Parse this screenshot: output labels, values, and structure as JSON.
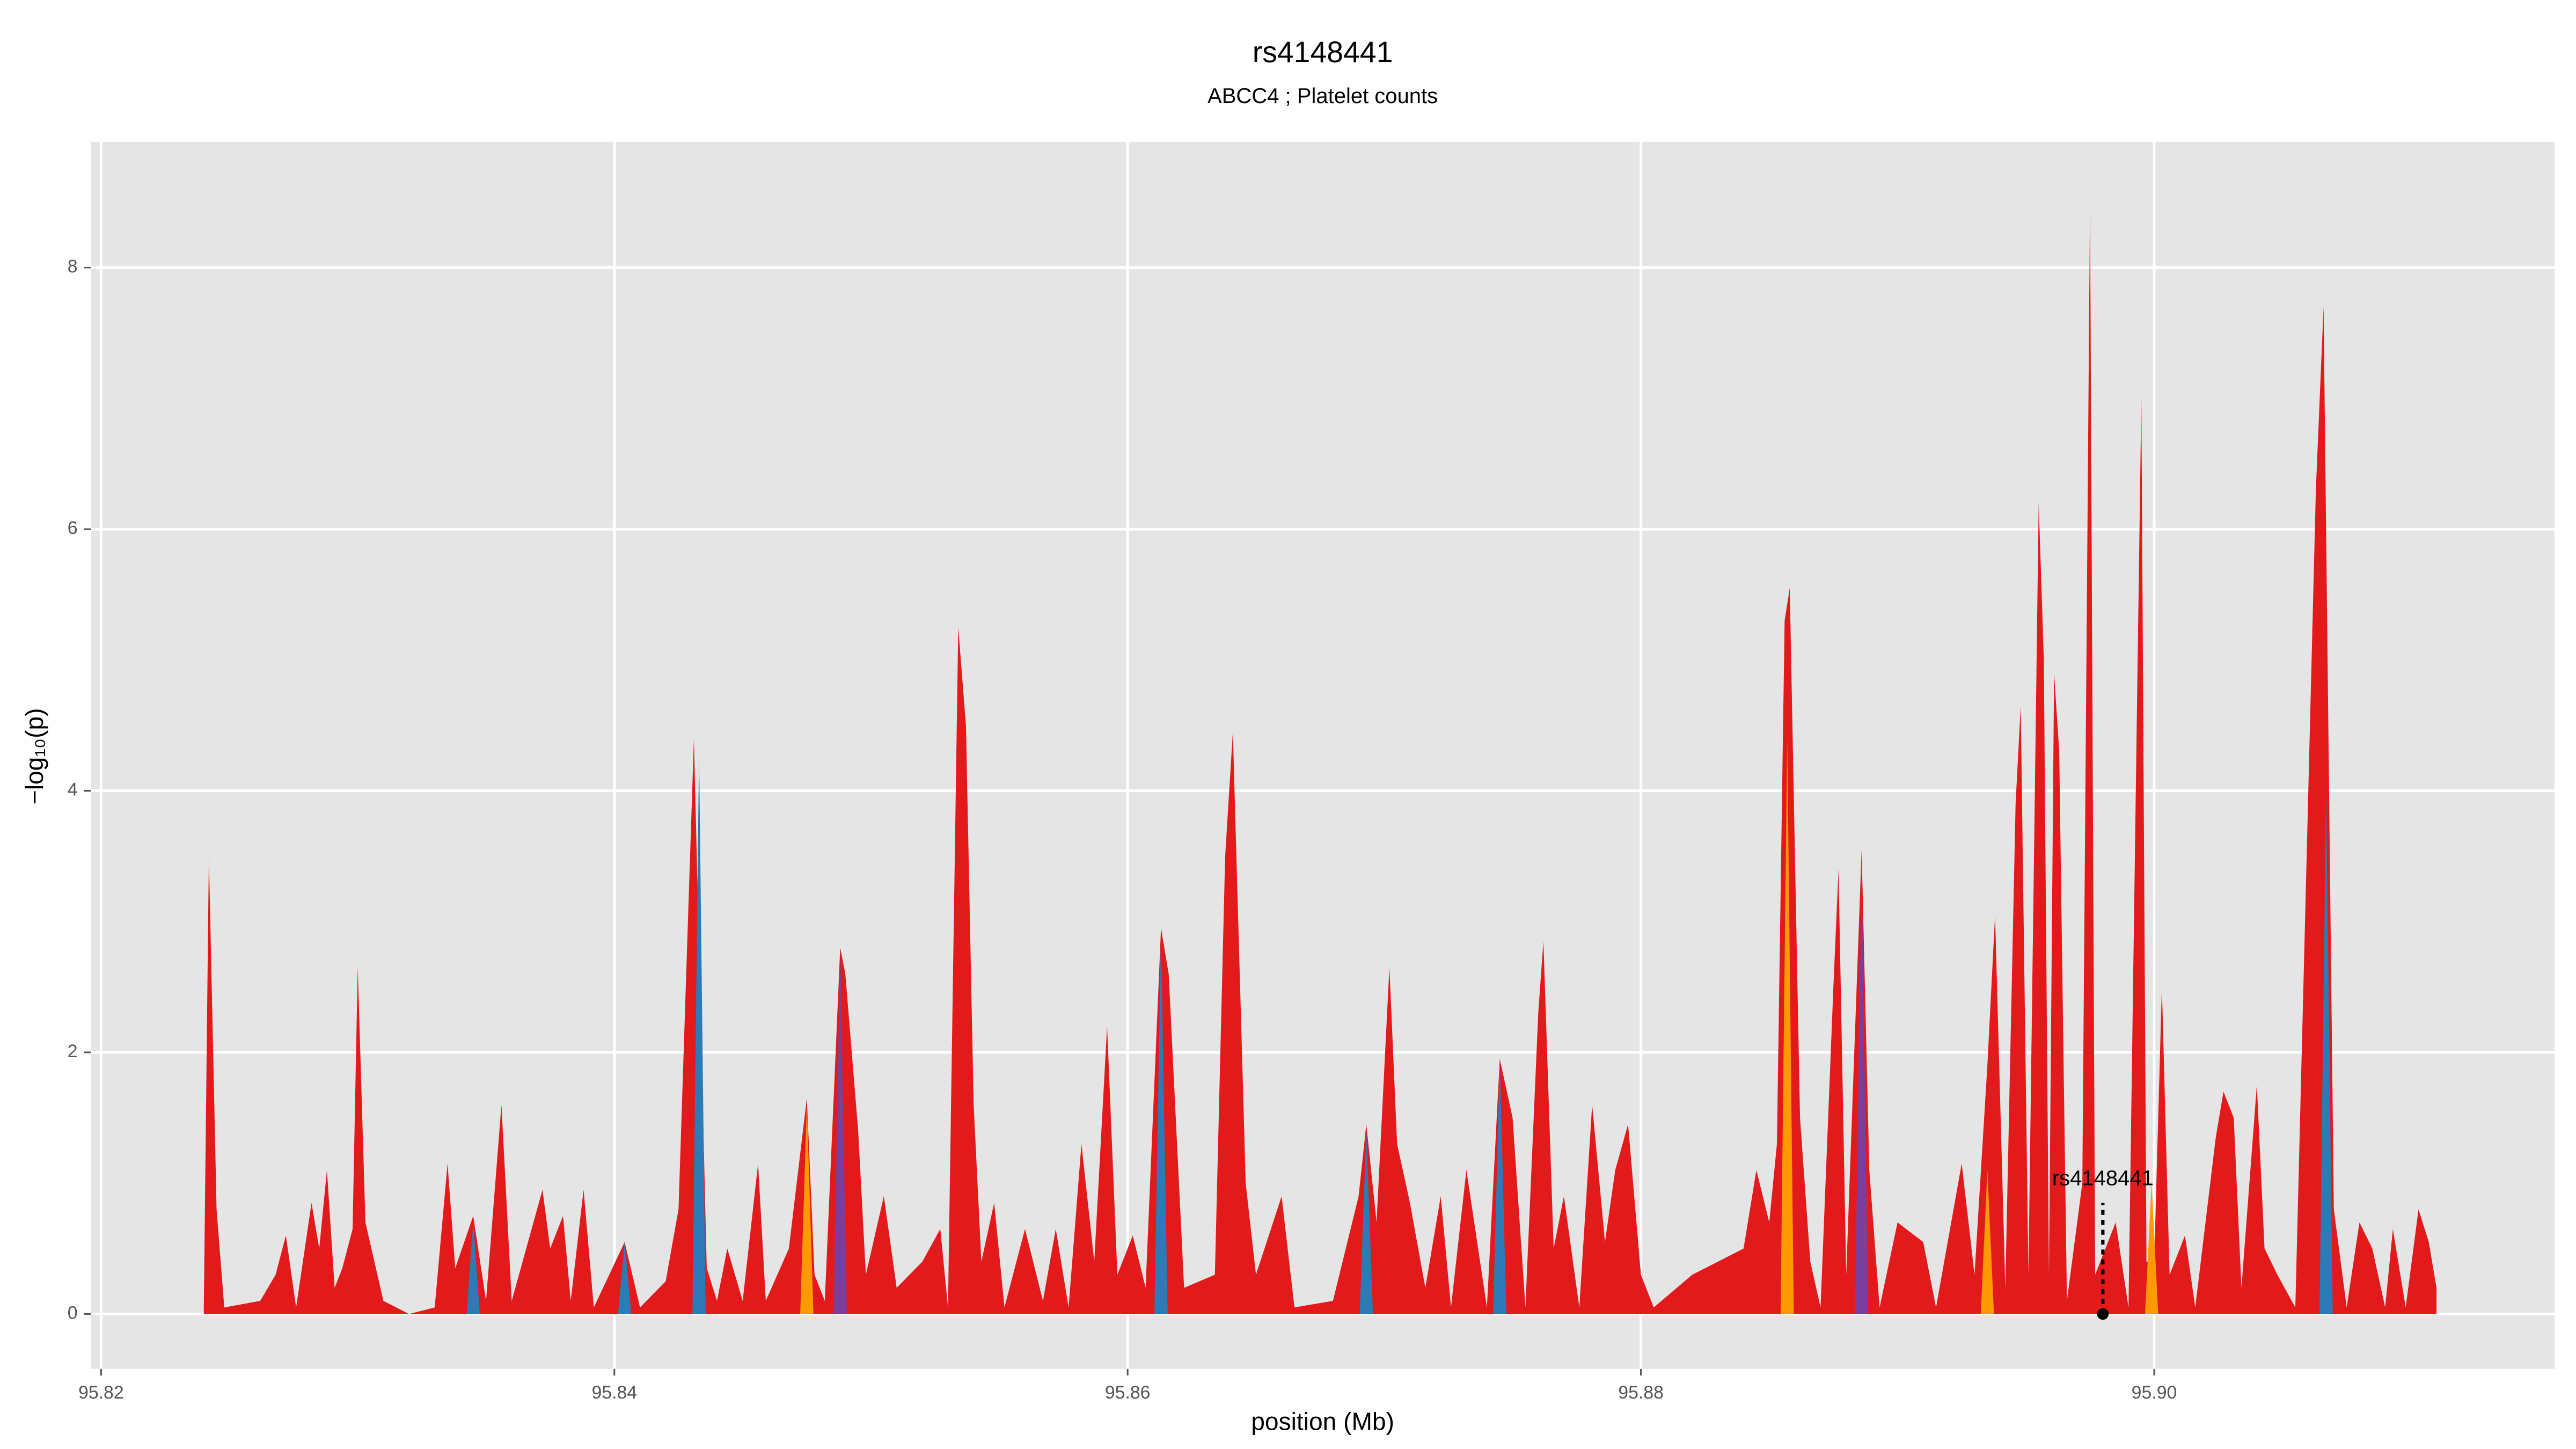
{
  "chart_data": {
    "type": "area",
    "title": "rs4148441",
    "subtitle": "ABCC4 ; Platelet counts",
    "x_label": "position (Mb)",
    "y_label": "−log₁₀(p)",
    "xlim": [
      95.8196,
      95.9156
    ],
    "ylim": [
      -0.42,
      8.96
    ],
    "xticks": [
      95.82,
      95.84,
      95.86,
      95.88,
      {
        "value": 95.9,
        "label": "95.90"
      }
    ],
    "yticks": [
      0,
      2,
      4,
      6,
      8
    ],
    "grid": true,
    "series": [
      {
        "color": "#e31a1c",
        "x": [
          95.824,
          95.8242,
          95.8245,
          95.8248,
          95.8262,
          95.8268,
          95.8272,
          95.8276,
          95.8282,
          95.8285,
          95.8288,
          95.8291,
          95.8294,
          95.8298,
          95.83,
          95.8303,
          95.831,
          95.832,
          95.833,
          95.8335,
          95.8338,
          95.8345,
          95.835,
          95.8356,
          95.836,
          95.8372,
          95.8375,
          95.838,
          95.8383,
          95.8388,
          95.8392,
          95.8404,
          95.841,
          95.842,
          95.8425,
          95.8431,
          95.8436,
          95.844,
          95.8444,
          95.845,
          95.8456,
          95.8459,
          95.8468,
          95.8475,
          95.8478,
          95.8482,
          95.8488,
          95.849,
          95.8495,
          95.8498,
          95.8505,
          95.851,
          95.852,
          95.8527,
          95.853,
          95.8534,
          95.8537,
          95.854,
          95.8543,
          95.8548,
          95.8552,
          95.856,
          95.8567,
          95.8572,
          95.8577,
          95.8582,
          95.8587,
          95.8592,
          95.8596,
          95.8602,
          95.8607,
          95.8613,
          95.8616,
          95.8622,
          95.8634,
          95.8638,
          95.8641,
          95.8646,
          95.865,
          95.866,
          95.8665,
          95.868,
          95.869,
          95.8693,
          95.8697,
          95.8702,
          95.8705,
          95.871,
          95.8716,
          95.8722,
          95.8726,
          95.8732,
          95.874,
          95.8745,
          95.875,
          95.8755,
          95.876,
          95.8762,
          95.8766,
          95.877,
          95.8776,
          95.8781,
          95.8786,
          95.879,
          95.8795,
          95.88,
          95.8805,
          95.882,
          95.884,
          95.8845,
          95.885,
          95.8853,
          95.8856,
          95.8858,
          95.8862,
          95.8866,
          95.887,
          95.8875,
          95.8877,
          95.888,
          95.8886,
          95.8889,
          95.8893,
          95.89,
          95.891,
          95.8915,
          95.892,
          95.8925,
          95.893,
          95.8935,
          95.8938,
          95.8942,
          95.8946,
          95.8948,
          95.8951,
          95.8955,
          95.8957,
          95.8959,
          95.8961,
          95.8963,
          95.8966,
          95.8972,
          95.8975,
          95.8977,
          95.8985,
          95.899,
          95.8995,
          95.8997,
          95.9,
          95.9003,
          95.9006,
          95.9012,
          95.9016,
          95.9024,
          95.9027,
          95.9031,
          95.9034,
          95.904,
          95.9043,
          95.9048,
          95.9055,
          95.9063,
          95.9066,
          95.907,
          95.9075,
          95.908,
          95.9085,
          95.909,
          95.9093,
          95.9098,
          95.9103,
          95.9107,
          95.911
        ],
        "values": [
          0,
          3.5,
          0.8,
          0.05,
          0.1,
          0.3,
          0.6,
          0.05,
          0.85,
          0.5,
          1.1,
          0.2,
          0.35,
          0.65,
          2.65,
          0.7,
          0.1,
          0,
          0.05,
          1.15,
          0.35,
          0.75,
          0.1,
          1.6,
          0.1,
          0.95,
          0.5,
          0.75,
          0.1,
          0.95,
          0.05,
          0.55,
          0.05,
          0.25,
          0.8,
          4.4,
          0.35,
          0.1,
          0.5,
          0.1,
          1.15,
          0.1,
          0.5,
          1.65,
          0.3,
          0.1,
          2.8,
          2.6,
          1.4,
          0.3,
          0.9,
          0.2,
          0.4,
          0.65,
          0.05,
          5.25,
          4.5,
          1.6,
          0.4,
          0.85,
          0.05,
          0.65,
          0.1,
          0.65,
          0.05,
          1.3,
          0.4,
          2.2,
          0.3,
          0.6,
          0.2,
          2.95,
          2.6,
          0.2,
          0.3,
          3.5,
          4.45,
          1.0,
          0.3,
          0.9,
          0.05,
          0.1,
          0.9,
          1.45,
          0.7,
          2.65,
          1.3,
          0.85,
          0.2,
          0.9,
          0.05,
          1.1,
          0.05,
          1.95,
          1.5,
          0.05,
          2.3,
          2.85,
          0.5,
          0.9,
          0.05,
          1.6,
          0.55,
          1.1,
          1.45,
          0.3,
          0.05,
          0.3,
          0.5,
          1.1,
          0.7,
          1.3,
          5.3,
          5.55,
          1.5,
          0.4,
          0.05,
          2.5,
          3.4,
          0.3,
          3.55,
          1.1,
          0.05,
          0.7,
          0.55,
          0.05,
          0.6,
          1.15,
          0.3,
          1.9,
          3.05,
          0.2,
          3.9,
          4.65,
          0.3,
          6.2,
          5.0,
          0.3,
          4.9,
          4.3,
          0.1,
          1.0,
          8.5,
          0.3,
          0.7,
          0.05,
          7.0,
          0.4,
          0.4,
          2.5,
          0.3,
          0.6,
          0.05,
          1.35,
          1.7,
          1.5,
          0.2,
          1.75,
          0.5,
          0.3,
          0.05,
          6.3,
          7.7,
          0.8,
          0.05,
          0.7,
          0.5,
          0.05,
          0.65,
          0.05,
          0.8,
          0.55,
          0.2
        ]
      },
      {
        "color": "#2c7bb6",
        "x": [
          95.8345,
          95.8404,
          95.8433,
          95.8613,
          95.8693,
          95.8745,
          95.9067
        ],
        "values": [
          0.7,
          0.55,
          4.3,
          2.9,
          1.4,
          1.95,
          4.0
        ]
      },
      {
        "color": "#ff9900",
        "x": [
          95.8475,
          95.8857,
          95.8935,
          95.8999
        ],
        "values": [
          1.6,
          4.4,
          1.1,
          1.0
        ]
      },
      {
        "color": "#7a3f9d",
        "x": [
          95.8488,
          95.8886
        ],
        "values": [
          2.8,
          3.4
        ]
      }
    ],
    "annotation": {
      "label": "rs4148441",
      "x": 95.898,
      "y": 0.85
    }
  }
}
